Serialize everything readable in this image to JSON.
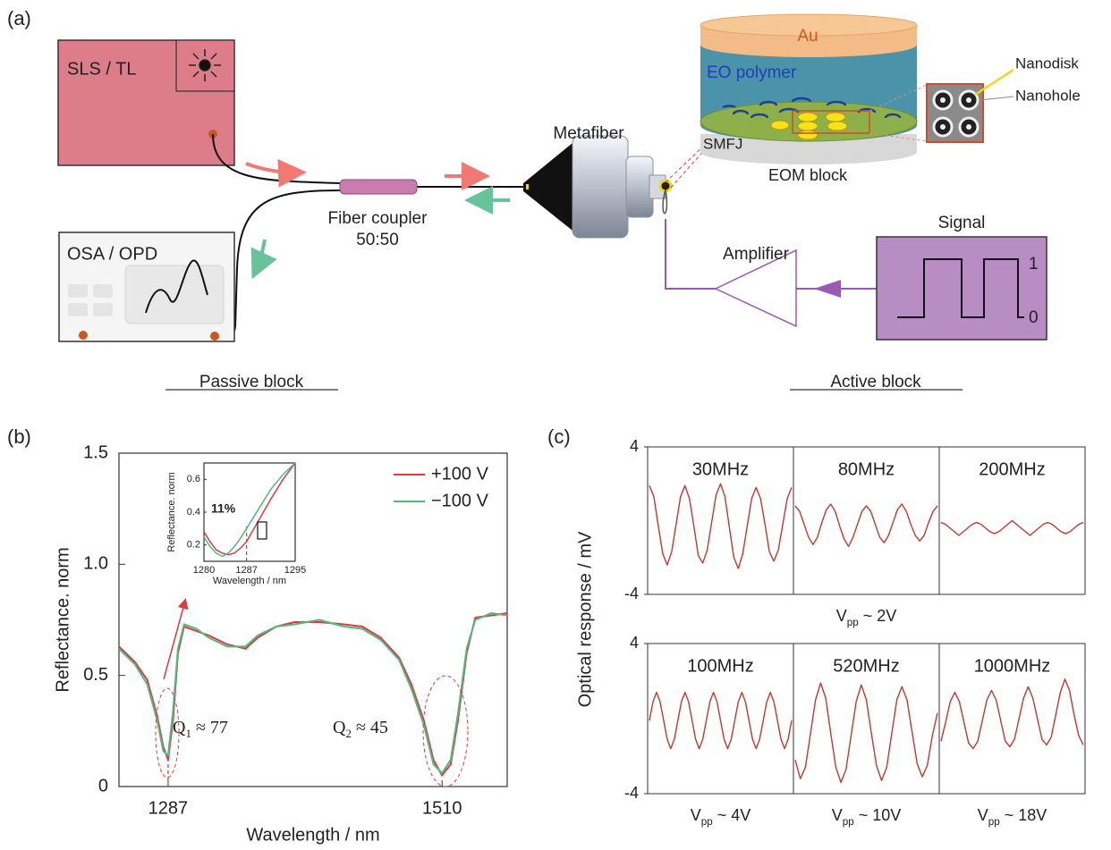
{
  "panel_labels": [
    "(a)",
    "(b)",
    "(c)"
  ],
  "diagram": {
    "source": "SLS / TL",
    "analyzer": "OSA / OPD",
    "coupler": "Fiber coupler",
    "coupler_ratio": "50:50",
    "metafiber": "Metafiber",
    "eom": {
      "top": "Au",
      "middle": "EO polymer",
      "bottom": "SMFJ",
      "caption": "EOM block"
    },
    "nanostructure": {
      "disk": "Nanodisk",
      "hole": "Nanohole"
    },
    "signal": {
      "title": "Signal",
      "high": "1",
      "low": "0"
    },
    "amplifier": "Amplifier",
    "blocks": {
      "passive": "Passive block",
      "active": "Active block"
    }
  },
  "chart_data": [
    {
      "type": "line",
      "xlabel": "Wavelength / nm",
      "ylabel": "Reflectance. norm",
      "xlim": [
        1247,
        1563
      ],
      "ylim": [
        0,
        1.5
      ],
      "xticks": [
        1287,
        1510
      ],
      "yticks": [
        0,
        0.5,
        {
          "value": 1,
          "label": "1.0"
        },
        1.5
      ],
      "legend": "upper right",
      "x": [
        1247,
        1260,
        1270,
        1278,
        1283,
        1287,
        1291,
        1295,
        1300,
        1310,
        1320,
        1335,
        1350,
        1360,
        1375,
        1390,
        1410,
        1430,
        1445,
        1460,
        1475,
        1485,
        1495,
        1503,
        1510,
        1517,
        1523,
        1530,
        1537,
        1550,
        1563
      ],
      "series": [
        {
          "name": "+100 V",
          "color": "#e0393e",
          "values": [
            0.63,
            0.56,
            0.48,
            0.32,
            0.18,
            0.12,
            0.3,
            0.6,
            0.72,
            0.7,
            0.68,
            0.64,
            0.62,
            0.67,
            0.72,
            0.74,
            0.74,
            0.73,
            0.72,
            0.67,
            0.58,
            0.46,
            0.3,
            0.12,
            0.05,
            0.1,
            0.3,
            0.6,
            0.76,
            0.77,
            0.78
          ]
        },
        {
          "name": "−100 V",
          "color": "#4dbb7f",
          "values": [
            0.62,
            0.55,
            0.46,
            0.3,
            0.16,
            0.14,
            0.34,
            0.62,
            0.73,
            0.71,
            0.67,
            0.63,
            0.63,
            0.68,
            0.72,
            0.73,
            0.75,
            0.72,
            0.71,
            0.66,
            0.57,
            0.44,
            0.28,
            0.1,
            0.06,
            0.12,
            0.33,
            0.62,
            0.75,
            0.78,
            0.77
          ]
        }
      ],
      "annotations": [
        {
          "base": "Q",
          "sub": "1",
          "rest": " ≈ 77"
        },
        {
          "base": "Q",
          "sub": "2",
          "rest": " ≈ 45"
        }
      ]
    },
    {
      "type": "line",
      "xlabel": "Wavelength / nm",
      "ylabel": "Reflectance. norm",
      "xlim": [
        1280,
        1295
      ],
      "ylim": [
        0.1,
        0.7
      ],
      "xticks": [
        1280,
        1287,
        1295
      ],
      "yticks": [
        0.2,
        0.4,
        0.6
      ],
      "x": [
        1280,
        1281,
        1282,
        1283,
        1284,
        1285,
        1286,
        1287,
        1289,
        1291,
        1293,
        1295
      ],
      "series": [
        {
          "color": "#e0393e",
          "values": [
            0.28,
            0.22,
            0.17,
            0.15,
            0.14,
            0.15,
            0.18,
            0.22,
            0.35,
            0.48,
            0.6,
            0.7
          ]
        },
        {
          "color": "#4dbb7f",
          "values": [
            0.25,
            0.19,
            0.15,
            0.13,
            0.15,
            0.19,
            0.24,
            0.3,
            0.42,
            0.54,
            0.63,
            0.7
          ]
        }
      ],
      "annotation": "11%"
    },
    {
      "type": "waveform",
      "ylabel": "Optical response / mV",
      "ylim": [
        -4,
        4
      ],
      "yticks": [
        -4,
        4
      ],
      "color": "#c0392b",
      "xlabel": {
        "base": "V",
        "sub": "pp",
        "rest": " ~ 2V"
      },
      "panels": [
        {
          "title": "30MHz",
          "values": [
            1.9,
            1.3,
            -0.3,
            -1.8,
            -2.4,
            -1.7,
            -0.2,
            1.3,
            1.9,
            1.2,
            -0.3,
            -1.9,
            -2.3,
            -1.6,
            -0.1,
            1.4,
            2.0,
            1.3,
            -0.4,
            -2.0,
            -2.6,
            -1.8,
            -0.3,
            1.2,
            1.8,
            1.2,
            -0.2,
            -1.7,
            -2.2,
            -1.6,
            -0.2,
            1.2,
            1.8
          ]
        },
        {
          "title": "80MHz",
          "values": [
            0.8,
            0.5,
            -0.2,
            -0.9,
            -1.3,
            -0.9,
            -0.1,
            0.6,
            0.9,
            0.5,
            -0.3,
            -1.0,
            -1.4,
            -0.9,
            -0.2,
            0.5,
            0.8,
            0.5,
            -0.2,
            -0.9,
            -1.2,
            -0.8,
            -0.1,
            0.6,
            0.9,
            0.5,
            -0.2,
            -0.8,
            -1.1,
            -0.8,
            -0.1,
            0.5,
            0.8
          ]
        },
        {
          "title": "200MHz",
          "values": [
            -0.1,
            -0.2,
            -0.4,
            -0.6,
            -0.8,
            -0.6,
            -0.4,
            -0.2,
            -0.1,
            -0.2,
            -0.4,
            -0.6,
            -0.7,
            -0.6,
            -0.4,
            -0.2,
            0.0,
            -0.2,
            -0.4,
            -0.6,
            -0.8,
            -0.6,
            -0.4,
            -0.2,
            -0.1,
            -0.2,
            -0.4,
            -0.6,
            -0.7,
            -0.6,
            -0.4,
            -0.2,
            -0.1
          ]
        }
      ]
    },
    {
      "type": "waveform",
      "ylim": [
        -4,
        4
      ],
      "yticks": [
        -4,
        4
      ],
      "color": "#c0392b",
      "panels": [
        {
          "title": "100MHz",
          "xlabel": {
            "base": "V",
            "sub": "pp",
            "rest": " ~ 4V"
          },
          "values": [
            -0.1,
            0.9,
            1.4,
            0.9,
            -0.1,
            -1.1,
            -1.6,
            -1.1,
            -0.1,
            0.9,
            1.4,
            0.9,
            -0.1,
            -1.1,
            -1.6,
            -1.1,
            -0.1,
            0.9,
            1.4,
            0.9,
            -0.1,
            -1.1,
            -1.6,
            -1.1,
            -0.1,
            0.9,
            1.4,
            0.9,
            -0.1,
            -1.1,
            -1.6,
            -1.1,
            -0.1,
            0.9,
            1.4,
            0.9,
            -0.1,
            -1.1,
            -1.6,
            -1.1,
            -0.1
          ]
        },
        {
          "title": "520MHz",
          "xlabel": {
            "base": "V",
            "sub": "pp",
            "rest": " ~ 10V"
          },
          "values": [
            -2.2,
            -3.2,
            -2.6,
            -0.8,
            1.0,
            1.9,
            1.1,
            -0.8,
            -2.6,
            -3.4,
            -2.7,
            -0.9,
            0.9,
            1.8,
            1.0,
            -0.8,
            -2.5,
            -3.3,
            -2.6,
            -0.8,
            1.0,
            1.7,
            1.0,
            -0.7,
            -2.4,
            -3.1,
            -2.5,
            -0.9,
            0.3
          ]
        },
        {
          "title": "1000MHz",
          "xlabel": {
            "base": "V",
            "sub": "pp",
            "rest": " ~ 18V"
          },
          "values": [
            -1.2,
            -0.2,
            0.9,
            1.4,
            0.9,
            -0.2,
            -1.3,
            -1.6,
            -1.2,
            -0.1,
            1.0,
            1.5,
            1.0,
            -0.1,
            -1.2,
            -1.5,
            -1.1,
            0.0,
            1.1,
            1.7,
            1.1,
            0.0,
            -1.1,
            -1.4,
            -1.0,
            0.2,
            1.4,
            2.1,
            1.5,
            0.2,
            -0.9,
            -1.4
          ]
        }
      ]
    }
  ]
}
